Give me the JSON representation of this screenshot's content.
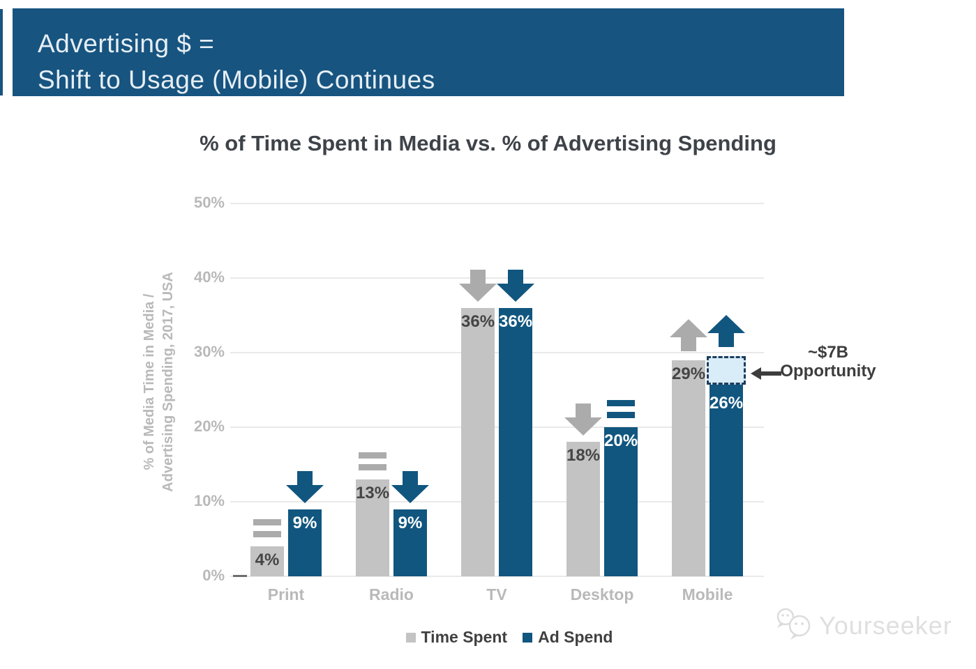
{
  "header": {
    "line1": "Advertising $ =",
    "line2": "Shift to Usage (Mobile) Continues"
  },
  "chart_data": {
    "type": "bar",
    "title": "% of Time Spent in Media vs. % of Advertising Spending",
    "categories": [
      "Print",
      "Radio",
      "TV",
      "Desktop",
      "Mobile"
    ],
    "series": [
      {
        "name": "Time Spent",
        "values": [
          4,
          13,
          36,
          18,
          29
        ],
        "labels": [
          "4%",
          "13%",
          "36%",
          "18%",
          "29%"
        ],
        "trends": [
          "flat",
          "flat",
          "down",
          "down",
          "up"
        ],
        "color": "#C3C3C3",
        "label_color": "#454545",
        "indicator_color": "#ABABAB"
      },
      {
        "name": "Ad Spend",
        "values": [
          9,
          9,
          36,
          20,
          26
        ],
        "labels": [
          "9%",
          "9%",
          "36%",
          "20%",
          "26%"
        ],
        "trends": [
          "down",
          "down",
          "down",
          "flat",
          "up"
        ],
        "color": "#11567F",
        "label_color": "#FFFFFF",
        "indicator_color": "#11567F"
      }
    ],
    "ylabel_lines": [
      "% of Media Time in Media /",
      "Advertising Spending, 2017, USA"
    ],
    "yticks": [
      "0%",
      "10%",
      "20%",
      "30%",
      "40%",
      "50%"
    ],
    "ylim": [
      0,
      50
    ],
    "grid": true,
    "legend_position": "bottom",
    "annotation": {
      "line1": "~$7B",
      "line2": "Opportunity",
      "applies_to_category": "Mobile",
      "applies_to_series": "Ad Spend",
      "box_from_pct": 26,
      "box_to_pct": 29.5
    }
  },
  "legend": {
    "items": [
      {
        "label": "Time Spent",
        "color": "#C3C3C3"
      },
      {
        "label": "Ad Spend",
        "color": "#11567F"
      }
    ]
  },
  "watermark": {
    "label": "Yourseeker"
  },
  "colors": {
    "banner_bg": "#175480",
    "banner_text": "#E6EEF4",
    "title_text": "#3E4349",
    "axis_text": "#B9B9B9",
    "grid_line": "#E9E9E9",
    "annotation_text": "#3D3D3D",
    "opportunity_fill": "#D9EDF8",
    "opportunity_border": "#1C3D5E"
  }
}
